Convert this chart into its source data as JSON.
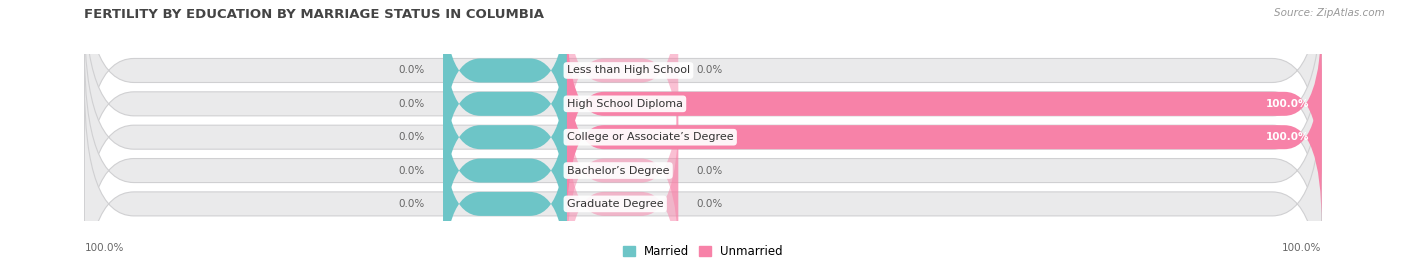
{
  "title": "FERTILITY BY EDUCATION BY MARRIAGE STATUS IN COLUMBIA",
  "source": "Source: ZipAtlas.com",
  "categories": [
    "Less than High School",
    "High School Diploma",
    "College or Associate’s Degree",
    "Bachelor’s Degree",
    "Graduate Degree"
  ],
  "married_values": [
    0.0,
    0.0,
    0.0,
    0.0,
    0.0
  ],
  "unmarried_values": [
    0.0,
    100.0,
    100.0,
    0.0,
    0.0
  ],
  "married_color": "#6DC5C7",
  "unmarried_color": "#F782A8",
  "bar_bg_color": "#EAEAEB",
  "bar_outline_color": "#D0D0D2",
  "bottom_left_label": "100.0%",
  "bottom_right_label": "100.0%",
  "title_fontsize": 9.5,
  "source_fontsize": 7.5,
  "label_fontsize": 7.5,
  "category_fontsize": 8,
  "legend_fontsize": 8.5,
  "fig_width": 14.06,
  "fig_height": 2.69
}
